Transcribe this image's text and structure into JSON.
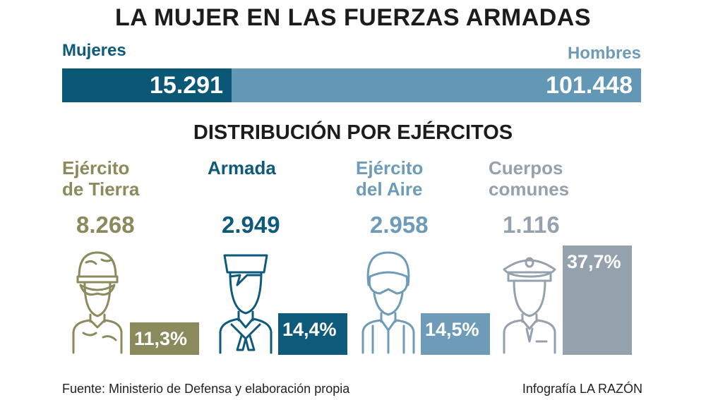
{
  "title": "LA MUJER EN LAS FUERZAS ARMADAS",
  "totals": {
    "women_label": "Mujeres",
    "women_value": "15.291",
    "men_label": "Hombres",
    "men_value": "101.448"
  },
  "subtitle": "DISTRIBUCIÓN POR EJÉRCITOS",
  "chart_data": {
    "type": "bar",
    "title": "DISTRIBUCIÓN POR EJÉRCITOS",
    "categories": [
      "Ejército de Tierra",
      "Armada",
      "Ejército del Aire",
      "Cuerpos comunes"
    ],
    "category_lines": [
      [
        "Ejército",
        "de Tierra"
      ],
      [
        "Armada"
      ],
      [
        "Ejército",
        "del Aire"
      ],
      [
        "Cuerpos",
        "comunes"
      ]
    ],
    "counts": [
      "8.268",
      "2.949",
      "2.958",
      "1.116"
    ],
    "values": [
      11.3,
      14.4,
      14.5,
      37.7
    ],
    "labels": [
      "11,3%",
      "14,4%",
      "14,5%",
      "37,7%"
    ],
    "colors": [
      "#8a8a5c",
      "#0e5a7a",
      "#6d9bb8",
      "#95a1ac"
    ],
    "icons": [
      "soldier-icon",
      "sailor-icon",
      "pilot-icon",
      "officer-icon"
    ]
  },
  "footer": {
    "source": "Fuente: Ministerio de Defensa y elaboración propia",
    "credit": "Infografía LA RAZÓN"
  }
}
